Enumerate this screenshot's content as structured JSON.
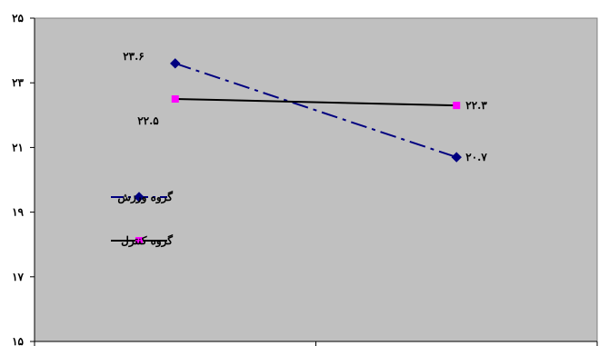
{
  "chart_data": {
    "type": "line",
    "title": "",
    "xlabel": "",
    "ylabel": "",
    "categories": [
      "",
      ""
    ],
    "ylim": [
      15,
      25
    ],
    "y_ticks": [
      15,
      17,
      19,
      21,
      23,
      25
    ],
    "y_tick_labels": [
      "۱۵",
      "۱۷",
      "۱۹",
      "۲۱",
      "۲۳",
      "۲۵"
    ],
    "grid": false,
    "plot_background": "#c0c0c0",
    "legend_position": "left-middle",
    "series": [
      {
        "name": "گروه ورزش",
        "values": [
          23.6,
          20.7
        ],
        "data_labels": [
          "۲۳.۶",
          "۲۰.۷"
        ],
        "color": "#000080",
        "line_style": "dash-dot",
        "marker": "diamond",
        "marker_color": "#000080"
      },
      {
        "name": "گروه کنترل",
        "values": [
          22.5,
          22.3
        ],
        "data_labels": [
          "۲۲.۵",
          "۲۲.۳"
        ],
        "color": "#000000",
        "line_style": "solid",
        "marker": "square",
        "marker_color": "#ff00ff"
      }
    ]
  }
}
